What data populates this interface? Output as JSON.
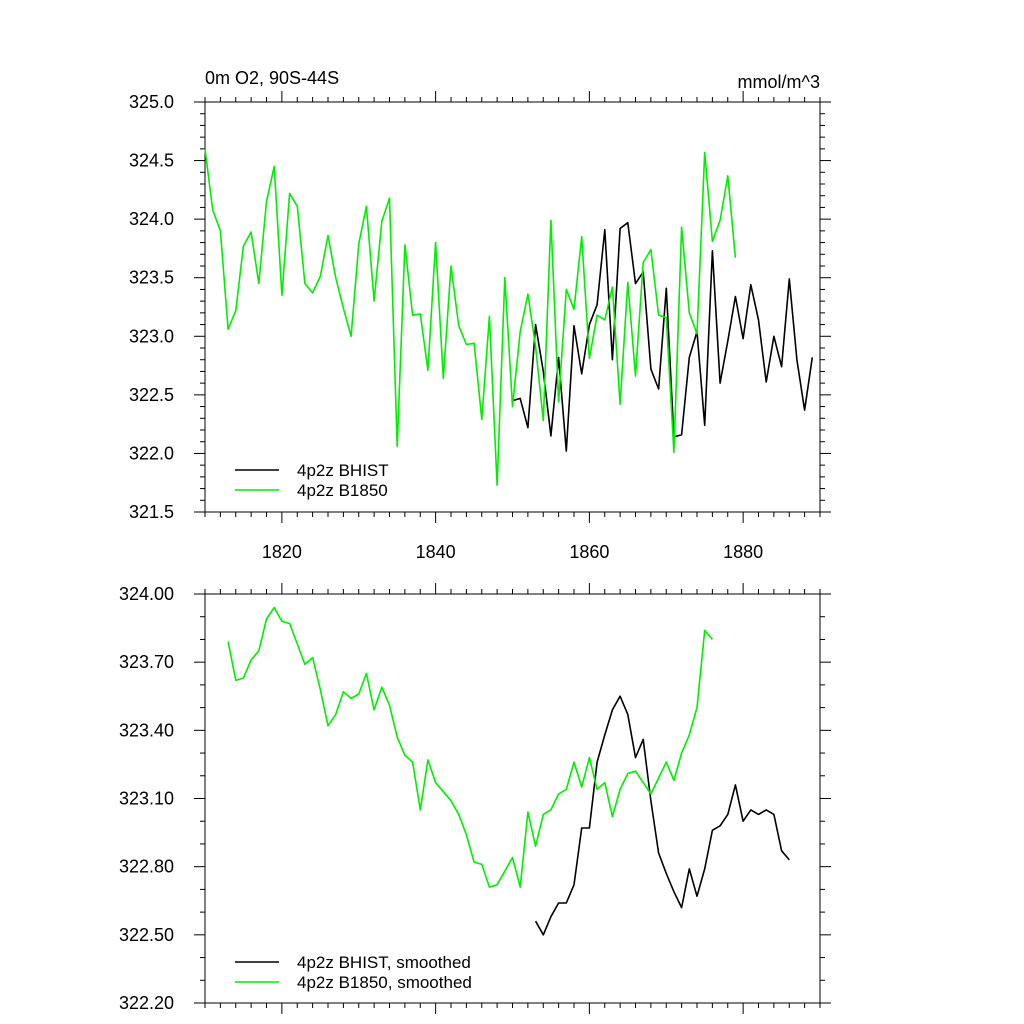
{
  "chart_data": [
    {
      "type": "line",
      "title_left": "0m O2, 90S-44S",
      "title_right": "mmol/m^3",
      "xlabel": "",
      "ylabel": "",
      "xlim": [
        1810,
        1890
      ],
      "ylim": [
        321.5,
        325.0
      ],
      "x_ticks": [
        1820,
        1840,
        1860,
        1880
      ],
      "x_tick_labels": [
        "1820",
        "1840",
        "1860",
        "1880"
      ],
      "y_ticks": [
        321.5,
        322.0,
        322.5,
        323.0,
        323.5,
        324.0,
        324.5,
        325.0
      ],
      "y_tick_labels": [
        "321.5",
        "322.0",
        "322.5",
        "323.0",
        "323.5",
        "324.0",
        "324.5",
        "325.0"
      ],
      "legend": {
        "position": "bottom-left",
        "entries": [
          "4p2z BHIST",
          "4p2z B1850"
        ]
      },
      "series": [
        {
          "name": "4p2z BHIST",
          "color": "#000000",
          "x": [
            1850,
            1851,
            1852,
            1853,
            1854,
            1855,
            1856,
            1857,
            1858,
            1859,
            1860,
            1861,
            1862,
            1863,
            1864,
            1865,
            1866,
            1867,
            1868,
            1869,
            1870,
            1871,
            1872,
            1873,
            1874,
            1875,
            1876,
            1877,
            1878,
            1879,
            1880,
            1881,
            1882,
            1883,
            1884,
            1885,
            1886,
            1887,
            1888,
            1889
          ],
          "y": [
            322.45,
            322.47,
            322.22,
            323.1,
            322.7,
            322.15,
            322.82,
            322.02,
            323.09,
            322.68,
            323.1,
            323.27,
            323.91,
            322.8,
            323.92,
            323.97,
            323.45,
            323.55,
            322.72,
            322.55,
            323.41,
            322.14,
            322.16,
            322.82,
            323.04,
            322.24,
            323.73,
            322.6,
            322.96,
            323.34,
            322.98,
            323.44,
            323.14,
            322.61,
            323.0,
            322.74,
            323.49,
            322.8,
            322.37,
            322.82
          ]
        },
        {
          "name": "4p2z B1850",
          "color": "#00ee00",
          "x": [
            1810,
            1811,
            1812,
            1813,
            1814,
            1815,
            1816,
            1817,
            1818,
            1819,
            1820,
            1821,
            1822,
            1823,
            1824,
            1825,
            1826,
            1827,
            1828,
            1829,
            1830,
            1831,
            1832,
            1833,
            1834,
            1835,
            1836,
            1837,
            1838,
            1839,
            1840,
            1841,
            1842,
            1843,
            1844,
            1845,
            1846,
            1847,
            1848,
            1849,
            1850,
            1851,
            1852,
            1853,
            1854,
            1855,
            1856,
            1857,
            1858,
            1859,
            1860,
            1861,
            1862,
            1863,
            1864,
            1865,
            1866,
            1867,
            1868,
            1869,
            1870,
            1871,
            1872,
            1873,
            1874,
            1875,
            1876,
            1877,
            1878,
            1879
          ],
          "y": [
            324.6,
            324.08,
            323.9,
            323.06,
            323.22,
            323.77,
            323.89,
            323.45,
            324.15,
            324.45,
            323.35,
            324.22,
            324.11,
            323.45,
            323.37,
            323.51,
            323.86,
            323.5,
            323.24,
            323.0,
            323.79,
            324.11,
            323.3,
            323.98,
            324.18,
            322.06,
            323.78,
            323.18,
            323.19,
            322.71,
            323.8,
            322.64,
            323.6,
            323.09,
            322.93,
            322.94,
            322.29,
            323.17,
            321.73,
            323.5,
            322.4,
            323.04,
            323.36,
            322.91,
            322.28,
            323.99,
            322.44,
            323.4,
            323.23,
            323.85,
            322.81,
            323.18,
            323.14,
            323.42,
            322.42,
            323.46,
            322.66,
            323.63,
            323.74,
            323.18,
            323.16,
            322.01,
            323.93,
            323.2,
            323.02,
            324.57,
            323.81,
            323.99,
            324.37,
            323.67
          ]
        }
      ]
    },
    {
      "type": "line",
      "xlabel": "",
      "ylabel": "",
      "xlim": [
        1810,
        1890
      ],
      "ylim": [
        322.2,
        324.0
      ],
      "x_ticks": [
        1820,
        1840,
        1860,
        1880
      ],
      "y_ticks": [
        322.2,
        322.5,
        322.8,
        323.1,
        323.4,
        323.7,
        324.0
      ],
      "y_tick_labels": [
        "322.20",
        "322.50",
        "322.80",
        "323.10",
        "323.40",
        "323.70",
        "324.00"
      ],
      "legend": {
        "position": "bottom-left",
        "entries": [
          "4p2z BHIST, smoothed",
          "4p2z B1850, smoothed"
        ]
      },
      "series": [
        {
          "name": "4p2z BHIST, smoothed",
          "color": "#000000",
          "x": [
            1853,
            1854,
            1855,
            1856,
            1857,
            1858,
            1859,
            1860,
            1861,
            1862,
            1863,
            1864,
            1865,
            1866,
            1867,
            1868,
            1869,
            1870,
            1871,
            1872,
            1873,
            1874,
            1875,
            1876,
            1877,
            1878,
            1879,
            1880,
            1881,
            1882,
            1883,
            1884,
            1885,
            1886
          ],
          "y": [
            322.56,
            322.5,
            322.58,
            322.64,
            322.64,
            322.72,
            322.97,
            322.97,
            323.26,
            323.38,
            323.49,
            323.55,
            323.47,
            323.28,
            323.36,
            323.09,
            322.86,
            322.77,
            322.69,
            322.62,
            322.79,
            322.67,
            322.79,
            322.96,
            322.98,
            323.03,
            323.16,
            323.0,
            323.05,
            323.03,
            323.05,
            323.03,
            322.87,
            322.83
          ]
        },
        {
          "name": "4p2z B1850, smoothed",
          "color": "#00ee00",
          "x": [
            1813,
            1814,
            1815,
            1816,
            1817,
            1818,
            1819,
            1820,
            1821,
            1822,
            1823,
            1824,
            1825,
            1826,
            1827,
            1828,
            1829,
            1830,
            1831,
            1832,
            1833,
            1834,
            1835,
            1836,
            1837,
            1838,
            1839,
            1840,
            1841,
            1842,
            1843,
            1844,
            1845,
            1846,
            1847,
            1848,
            1849,
            1850,
            1851,
            1852,
            1853,
            1854,
            1855,
            1856,
            1857,
            1858,
            1859,
            1860,
            1861,
            1862,
            1863,
            1864,
            1865,
            1866,
            1867,
            1868,
            1869,
            1870,
            1871,
            1872,
            1873,
            1874,
            1875,
            1876
          ],
          "y": [
            323.79,
            323.62,
            323.63,
            323.71,
            323.75,
            323.89,
            323.94,
            323.88,
            323.87,
            323.78,
            323.69,
            323.72,
            323.58,
            323.42,
            323.47,
            323.57,
            323.54,
            323.56,
            323.65,
            323.49,
            323.59,
            323.51,
            323.37,
            323.29,
            323.26,
            323.05,
            323.27,
            323.17,
            323.13,
            323.09,
            323.03,
            322.94,
            322.82,
            322.81,
            322.71,
            322.72,
            322.78,
            322.84,
            322.71,
            323.04,
            322.89,
            323.03,
            323.05,
            323.12,
            323.14,
            323.26,
            323.15,
            323.28,
            323.14,
            323.17,
            323.02,
            323.14,
            323.21,
            323.22,
            323.17,
            323.12,
            323.19,
            323.26,
            323.18,
            323.3,
            323.38,
            323.5,
            323.84,
            323.8
          ]
        }
      ]
    }
  ]
}
